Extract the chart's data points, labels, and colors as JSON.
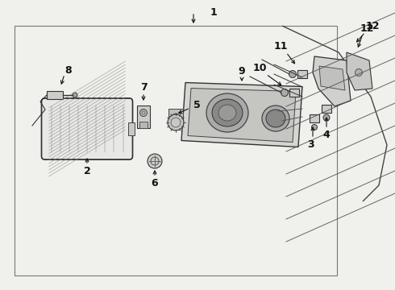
{
  "background_color": "#f0f0ec",
  "border_color": "#555555",
  "text_color": "#111111",
  "fig_width": 4.9,
  "fig_height": 3.6,
  "dpi": 100
}
